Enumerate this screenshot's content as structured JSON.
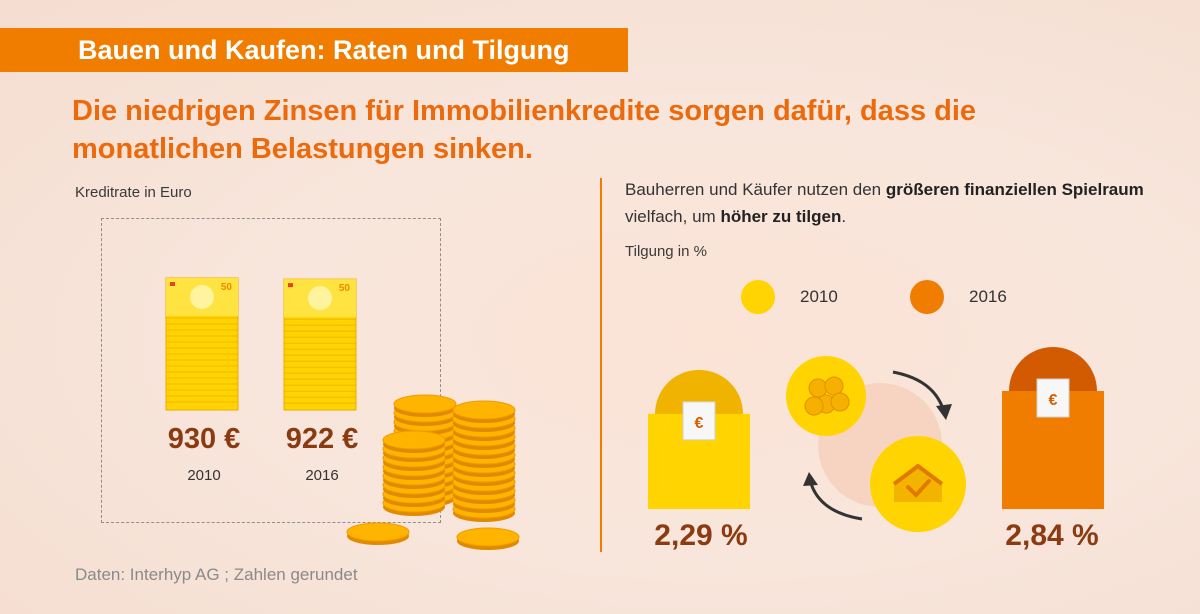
{
  "header": {
    "title": "Bauen und Kaufen: Raten und Tilgung",
    "headline": "Die niedrigen Zinsen für Immobilienkredite sorgen dafür, dass die monatlichen Belastungen sinken."
  },
  "left_panel": {
    "label": "Kreditrate in Euro",
    "banknote_value": "50"
  },
  "right_panel": {
    "intro_part1": "Bauherren und Käufer nutzen den ",
    "intro_bold1": "größeren finanziellen Spielraum",
    "intro_part2": " vielfach, um ",
    "intro_bold2": "höher zu tilgen",
    "intro_part3": ".",
    "label": "Tilgung in %",
    "euro_symbol": "€"
  },
  "source": "Daten: Interhyp AG ; Zahlen gerundet",
  "colors": {
    "accent": "#f07d00",
    "yellow": "#ffd400",
    "orange": "#f07d00",
    "value_text": "#8a3b12"
  },
  "chart_data": [
    {
      "type": "bar",
      "title": "Kreditrate in Euro",
      "categories": [
        "2010",
        "2016"
      ],
      "values": [
        930,
        922
      ],
      "value_labels": [
        "930 €",
        "922 €"
      ],
      "unit": "€"
    },
    {
      "type": "bar",
      "title": "Tilgung in %",
      "series": [
        {
          "name": "2010",
          "values": [
            2.29
          ],
          "color": "#ffd400"
        },
        {
          "name": "2016",
          "values": [
            2.84
          ],
          "color": "#f07d00"
        }
      ],
      "value_labels": [
        "2,29 %",
        "2,84 %"
      ],
      "legend": [
        "2010",
        "2016"
      ],
      "legend_position": "top"
    }
  ]
}
